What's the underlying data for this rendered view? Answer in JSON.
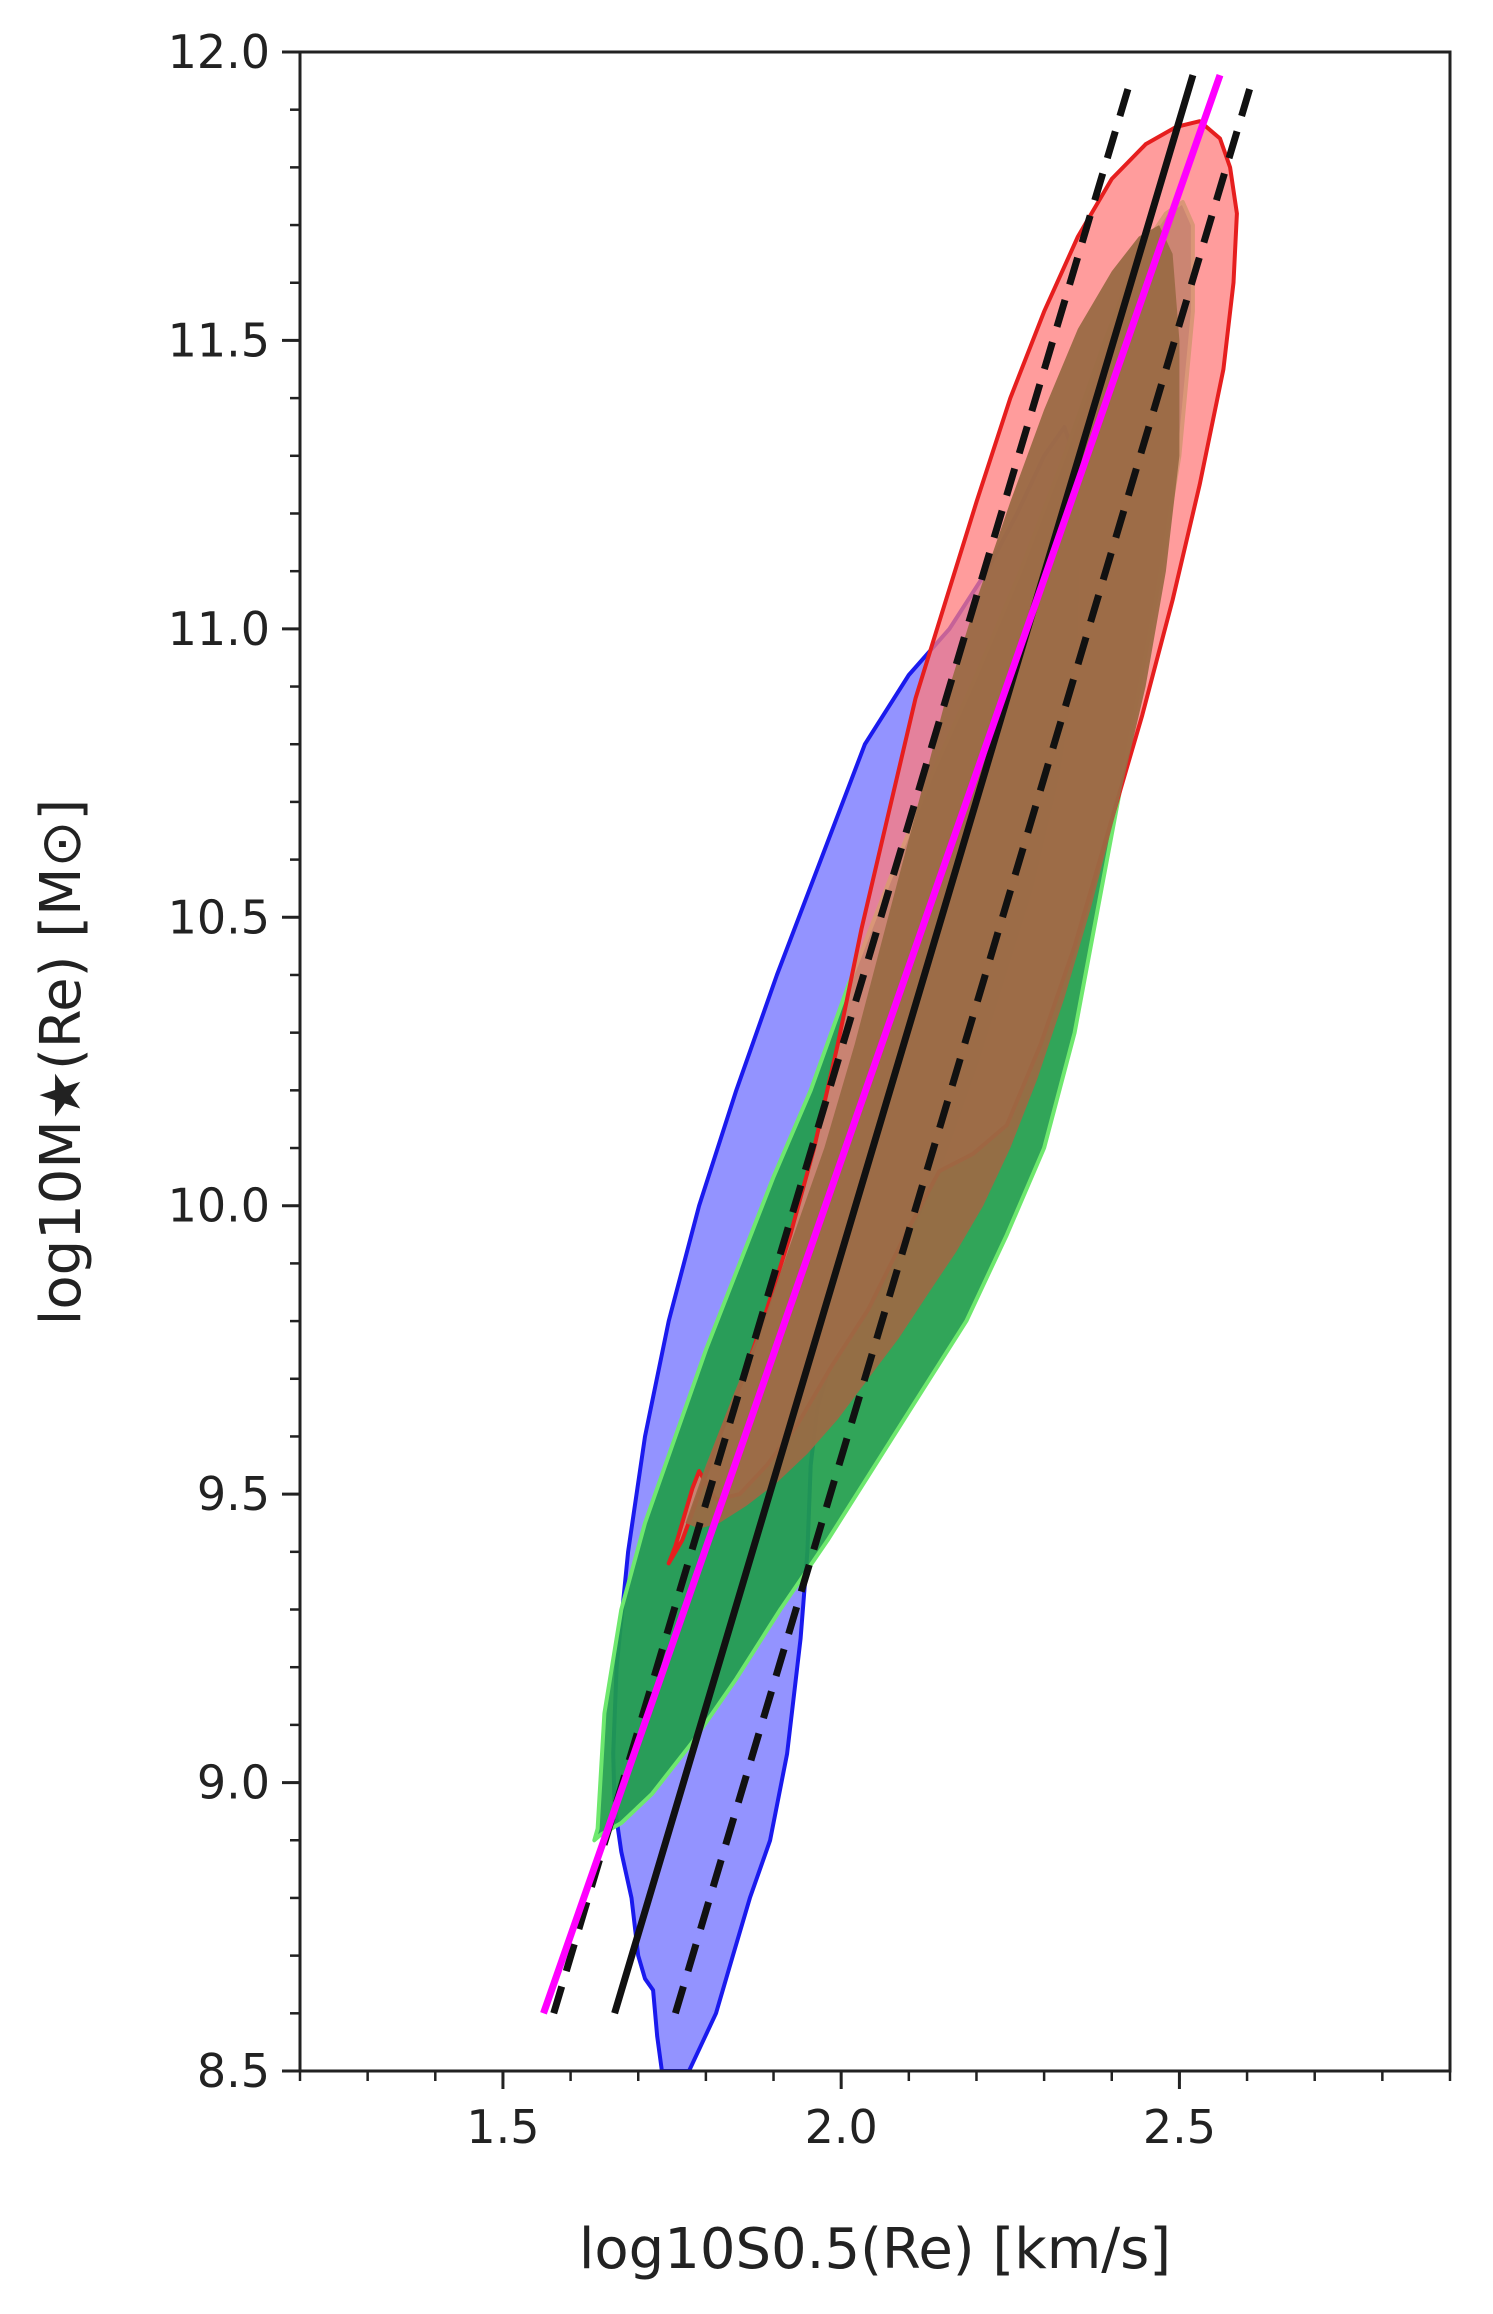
{
  "chart_data": {
    "type": "line",
    "xlabel": "log10S0.5(Re) [km/s]",
    "ylabel": "log10M★(Re) [M⊙]",
    "xlim": [
      1.2,
      2.9
    ],
    "ylim": [
      8.5,
      12.0
    ],
    "x_ticks": [
      "1.5",
      "2.0",
      "2.5"
    ],
    "y_ticks": [
      "8.5",
      "9.0",
      "9.5",
      "10.0",
      "10.5",
      "11.0",
      "11.5",
      "12.0"
    ],
    "grid": false,
    "series": [
      {
        "style": "solid",
        "color": "#111111",
        "x": [
          1.665,
          2.52
        ],
        "y": [
          8.6,
          11.96
        ]
      },
      {
        "style": "dashed",
        "color": "#111111",
        "x": [
          1.575,
          2.43
        ],
        "y": [
          8.6,
          11.96
        ]
      },
      {
        "style": "dashed",
        "color": "#111111",
        "x": [
          1.755,
          2.61
        ],
        "y": [
          8.6,
          11.96
        ]
      },
      {
        "style": "solid",
        "color": "#ff00ff",
        "x": [
          1.56,
          2.56
        ],
        "y": [
          8.6,
          11.96
        ]
      }
    ],
    "contours": [
      {
        "fill": "#7b7bff",
        "stroke": "#1a1aee",
        "opacity": 0.82,
        "x": [
          1.735,
          1.728,
          1.722,
          1.71,
          1.7,
          1.69,
          1.675,
          1.665,
          1.663,
          1.668,
          1.685,
          1.71,
          1.745,
          1.79,
          1.845,
          1.905,
          1.97,
          2.035,
          2.1,
          2.16,
          2.215,
          2.26,
          2.3,
          2.33,
          2.345,
          2.35,
          2.345,
          2.32,
          2.28,
          2.24,
          2.2,
          2.14,
          2.08,
          2.03,
          1.99,
          1.965,
          1.955,
          1.95,
          1.94,
          1.92,
          1.895,
          1.865,
          1.84,
          1.815,
          1.795,
          1.775,
          1.755,
          1.745,
          1.74,
          1.735
        ],
        "y": [
          8.5,
          8.56,
          8.64,
          8.66,
          8.7,
          8.8,
          8.88,
          8.96,
          9.05,
          9.2,
          9.4,
          9.6,
          9.8,
          10.0,
          10.2,
          10.4,
          10.6,
          10.8,
          10.92,
          11.0,
          11.1,
          11.2,
          11.3,
          11.35,
          11.3,
          11.15,
          10.95,
          10.75,
          10.55,
          10.4,
          10.25,
          10.05,
          9.9,
          9.8,
          9.75,
          9.65,
          9.55,
          9.4,
          9.25,
          9.05,
          8.9,
          8.8,
          8.7,
          8.6,
          8.55,
          8.5,
          8.5,
          8.5,
          8.5,
          8.5
        ]
      },
      {
        "fill": "#1f9d4b",
        "stroke": "#6ee86e",
        "opacity": 0.92,
        "x": [
          1.64,
          1.65,
          1.675,
          1.71,
          1.755,
          1.8,
          1.85,
          1.9,
          1.955,
          2.01,
          2.07,
          2.135,
          2.2,
          2.265,
          2.33,
          2.39,
          2.44,
          2.48,
          2.505,
          2.52,
          2.52,
          2.5,
          2.465,
          2.425,
          2.385,
          2.345,
          2.3,
          2.245,
          2.185,
          2.12,
          2.05,
          1.98,
          1.91,
          1.845,
          1.78,
          1.72,
          1.675,
          1.645,
          1.635,
          1.64
        ],
        "y": [
          8.92,
          9.12,
          9.3,
          9.45,
          9.6,
          9.75,
          9.9,
          10.05,
          10.2,
          10.38,
          10.56,
          10.75,
          10.92,
          11.1,
          11.3,
          11.5,
          11.65,
          11.72,
          11.74,
          11.7,
          11.55,
          11.3,
          11.05,
          10.8,
          10.55,
          10.3,
          10.1,
          9.95,
          9.8,
          9.68,
          9.55,
          9.42,
          9.3,
          9.18,
          9.07,
          8.98,
          8.93,
          8.91,
          8.9,
          8.92
        ]
      },
      {
        "fill": "#ff7b7b",
        "stroke": "#e61e1e",
        "opacity": 0.75,
        "x": [
          1.745,
          1.765,
          1.79,
          1.82,
          1.855,
          1.89,
          1.925,
          1.96,
          1.995,
          2.03,
          2.07,
          2.11,
          2.155,
          2.2,
          2.25,
          2.3,
          2.35,
          2.4,
          2.45,
          2.495,
          2.53,
          2.56,
          2.575,
          2.585,
          2.58,
          2.565,
          2.53,
          2.49,
          2.445,
          2.395,
          2.345,
          2.295,
          2.245,
          2.195,
          2.145,
          2.095,
          2.04,
          1.985,
          1.935,
          1.89,
          1.85,
          1.815,
          1.8,
          1.79,
          1.78,
          1.765,
          1.755,
          1.745
        ],
        "y": [
          9.38,
          9.42,
          9.5,
          9.6,
          9.7,
          9.82,
          9.95,
          10.1,
          10.28,
          10.48,
          10.68,
          10.88,
          11.05,
          11.22,
          11.4,
          11.55,
          11.68,
          11.78,
          11.84,
          11.87,
          11.88,
          11.85,
          11.8,
          11.72,
          11.6,
          11.45,
          11.25,
          11.05,
          10.85,
          10.65,
          10.45,
          10.28,
          10.14,
          10.09,
          10.06,
          9.95,
          9.82,
          9.72,
          9.62,
          9.55,
          9.5,
          9.49,
          9.52,
          9.54,
          9.51,
          9.45,
          9.41,
          9.38
        ]
      },
      {
        "fill": "#9a6a45",
        "stroke": "none",
        "opacity": 0.95,
        "x": [
          1.77,
          1.8,
          1.84,
          1.885,
          1.93,
          1.975,
          2.02,
          2.065,
          2.11,
          2.155,
          2.2,
          2.25,
          2.3,
          2.35,
          2.4,
          2.44,
          2.47,
          2.49,
          2.5,
          2.5,
          2.48,
          2.45,
          2.41,
          2.37,
          2.33,
          2.29,
          2.25,
          2.21,
          2.17,
          2.13,
          2.085,
          2.04,
          1.995,
          1.95,
          1.905,
          1.86,
          1.82,
          1.79,
          1.77
        ],
        "y": [
          9.45,
          9.55,
          9.67,
          9.8,
          9.95,
          10.1,
          10.28,
          10.48,
          10.68,
          10.88,
          11.05,
          11.22,
          11.38,
          11.52,
          11.62,
          11.68,
          11.7,
          11.65,
          11.5,
          11.3,
          11.1,
          10.9,
          10.7,
          10.52,
          10.36,
          10.22,
          10.1,
          10.0,
          9.92,
          9.85,
          9.77,
          9.7,
          9.63,
          9.57,
          9.52,
          9.48,
          9.45,
          9.44,
          9.45
        ]
      }
    ]
  }
}
